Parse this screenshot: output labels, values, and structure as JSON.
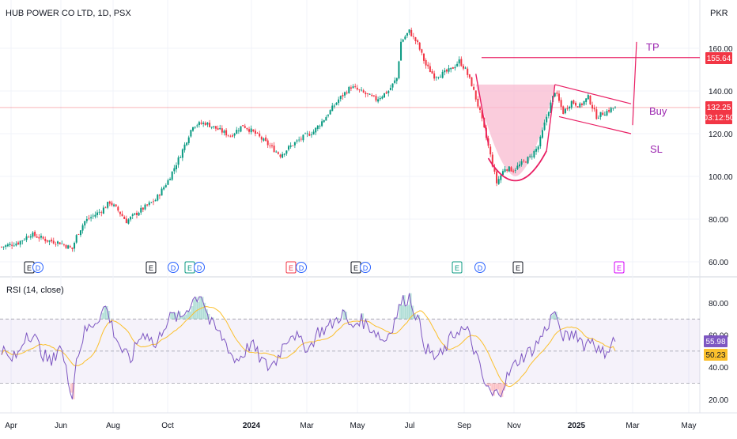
{
  "header": {
    "symbol_title": "HUB POWER CO LTD, 1D, PSX",
    "currency": "PKR"
  },
  "rsi_panel": {
    "label": "RSI (14, close)"
  },
  "price_tags": {
    "target": "155.64",
    "last_price": "132.25",
    "countdown": "03:12:50"
  },
  "rsi_tags": {
    "rsi": "55.98",
    "rsi_ma": "50.23"
  },
  "annotations": {
    "tp": "TP",
    "buy": "Buy",
    "sl": "SL"
  },
  "events": [
    {
      "label": "E",
      "kind": "earnings",
      "color": "#131722"
    },
    {
      "label": "D",
      "kind": "dividend",
      "color": "#2962ff"
    },
    {
      "label": "E",
      "kind": "earnings",
      "color": "#131722"
    },
    {
      "label": "D",
      "kind": "dividend",
      "color": "#2962ff"
    },
    {
      "label": "E",
      "kind": "earnings",
      "color": "#089981"
    },
    {
      "label": "D",
      "kind": "dividend",
      "color": "#2962ff"
    },
    {
      "label": "E",
      "kind": "earnings",
      "color": "#f23645"
    },
    {
      "label": "D",
      "kind": "dividend",
      "color": "#2962ff"
    },
    {
      "label": "E",
      "kind": "earnings",
      "color": "#131722"
    },
    {
      "label": "D",
      "kind": "dividend",
      "color": "#2962ff"
    },
    {
      "label": "E",
      "kind": "earnings",
      "color": "#089981"
    },
    {
      "label": "D",
      "kind": "dividend",
      "color": "#2962ff"
    },
    {
      "label": "E",
      "kind": "earnings",
      "color": "#131722"
    },
    {
      "label": "E",
      "kind": "earnings",
      "color": "#d500f9"
    }
  ],
  "colors": {
    "up": "#089981",
    "down": "#f23645",
    "drawing": "#e91e63",
    "rsi_line": "#7e57c2",
    "rsi_ma": "#fbc02d",
    "annotation_text": "#9c27b0"
  },
  "chart_data": {
    "type": "candlestick",
    "price_axis": {
      "ticks": [
        "160.00",
        "140.00",
        "120.00",
        "100.00",
        "80.00",
        "60.00"
      ],
      "tick_values": [
        160,
        140,
        120,
        100,
        80,
        60
      ]
    },
    "rsi_axis": {
      "ticks": [
        "80.00",
        "60.00",
        "40.00",
        "20.00"
      ],
      "tick_values": [
        80,
        60,
        40,
        20
      ],
      "bands": [
        70,
        50,
        30
      ]
    },
    "time_axis": {
      "labels": [
        "Apr",
        "Jun",
        "Aug",
        "Oct",
        "2024",
        "Mar",
        "May",
        "Jul",
        "Sep",
        "Nov",
        "2025",
        "Mar",
        "May"
      ],
      "bold": [
        false,
        false,
        false,
        false,
        true,
        false,
        false,
        false,
        false,
        false,
        true,
        false,
        false
      ]
    },
    "price_anchors": [
      [
        0,
        67
      ],
      [
        8,
        69
      ],
      [
        14,
        73
      ],
      [
        22,
        70
      ],
      [
        28,
        69
      ],
      [
        34,
        66
      ],
      [
        36,
        72
      ],
      [
        40,
        79
      ],
      [
        48,
        84
      ],
      [
        52,
        88
      ],
      [
        56,
        84
      ],
      [
        60,
        79
      ],
      [
        68,
        85
      ],
      [
        74,
        89
      ],
      [
        80,
        98
      ],
      [
        86,
        110
      ],
      [
        92,
        124
      ],
      [
        98,
        125
      ],
      [
        104,
        122
      ],
      [
        110,
        119
      ],
      [
        116,
        124
      ],
      [
        122,
        120
      ],
      [
        128,
        115
      ],
      [
        134,
        110
      ],
      [
        140,
        115
      ],
      [
        146,
        119
      ],
      [
        150,
        121
      ],
      [
        156,
        128
      ],
      [
        162,
        136
      ],
      [
        168,
        142
      ],
      [
        174,
        139
      ],
      [
        180,
        136
      ],
      [
        186,
        140
      ],
      [
        190,
        146
      ],
      [
        192,
        163
      ],
      [
        196,
        168
      ],
      [
        200,
        162
      ],
      [
        204,
        152
      ],
      [
        208,
        147
      ],
      [
        212,
        148
      ],
      [
        216,
        150
      ],
      [
        220,
        154
      ],
      [
        223,
        150
      ],
      [
        226,
        143
      ],
      [
        230,
        130
      ],
      [
        234,
        114
      ],
      [
        238,
        97
      ],
      [
        242,
        104
      ],
      [
        246,
        103
      ],
      [
        250,
        106
      ],
      [
        254,
        109
      ],
      [
        258,
        114
      ],
      [
        262,
        128
      ],
      [
        266,
        140
      ],
      [
        270,
        130
      ],
      [
        274,
        135
      ],
      [
        278,
        133
      ],
      [
        282,
        137
      ],
      [
        286,
        128
      ],
      [
        290,
        130
      ],
      [
        294,
        132
      ]
    ],
    "last_price": 132.25,
    "target_price": 155.64,
    "rsi_anchors": [
      [
        0,
        52
      ],
      [
        4,
        44
      ],
      [
        8,
        48
      ],
      [
        12,
        62
      ],
      [
        16,
        58
      ],
      [
        20,
        48
      ],
      [
        24,
        42
      ],
      [
        28,
        55
      ],
      [
        32,
        32
      ],
      [
        34,
        24
      ],
      [
        36,
        45
      ],
      [
        40,
        62
      ],
      [
        46,
        70
      ],
      [
        50,
        78
      ],
      [
        54,
        62
      ],
      [
        58,
        50
      ],
      [
        62,
        44
      ],
      [
        66,
        58
      ],
      [
        70,
        62
      ],
      [
        74,
        52
      ],
      [
        78,
        66
      ],
      [
        82,
        72
      ],
      [
        86,
        70
      ],
      [
        92,
        82
      ],
      [
        96,
        86
      ],
      [
        100,
        68
      ],
      [
        104,
        62
      ],
      [
        108,
        55
      ],
      [
        112,
        44
      ],
      [
        116,
        48
      ],
      [
        120,
        55
      ],
      [
        124,
        46
      ],
      [
        128,
        40
      ],
      [
        132,
        44
      ],
      [
        136,
        56
      ],
      [
        140,
        62
      ],
      [
        144,
        55
      ],
      [
        148,
        52
      ],
      [
        152,
        62
      ],
      [
        156,
        64
      ],
      [
        160,
        68
      ],
      [
        164,
        74
      ],
      [
        168,
        64
      ],
      [
        172,
        70
      ],
      [
        176,
        66
      ],
      [
        180,
        62
      ],
      [
        184,
        56
      ],
      [
        188,
        66
      ],
      [
        192,
        80
      ],
      [
        196,
        84
      ],
      [
        200,
        70
      ],
      [
        204,
        52
      ],
      [
        208,
        46
      ],
      [
        212,
        48
      ],
      [
        216,
        58
      ],
      [
        220,
        64
      ],
      [
        224,
        62
      ],
      [
        228,
        48
      ],
      [
        232,
        30
      ],
      [
        236,
        22
      ],
      [
        240,
        26
      ],
      [
        244,
        36
      ],
      [
        248,
        44
      ],
      [
        252,
        48
      ],
      [
        256,
        52
      ],
      [
        260,
        60
      ],
      [
        264,
        70
      ],
      [
        266,
        76
      ],
      [
        268,
        62
      ],
      [
        272,
        58
      ],
      [
        276,
        62
      ],
      [
        280,
        54
      ],
      [
        284,
        58
      ],
      [
        288,
        48
      ],
      [
        292,
        52
      ],
      [
        294,
        56
      ]
    ],
    "rsi_last": 55.98,
    "rsi_ma_last": 50.23,
    "drawings": {
      "cup_fill_price_range": [
        100,
        143
      ],
      "flag_upper": [
        [
          266,
          143
        ],
        [
          295,
          134
        ]
      ],
      "flag_lower": [
        [
          268,
          128
        ],
        [
          295,
          120
        ]
      ],
      "tp_line": 155.64,
      "right_projection": [
        [
          298,
          124
        ],
        [
          300,
          163
        ]
      ]
    }
  }
}
